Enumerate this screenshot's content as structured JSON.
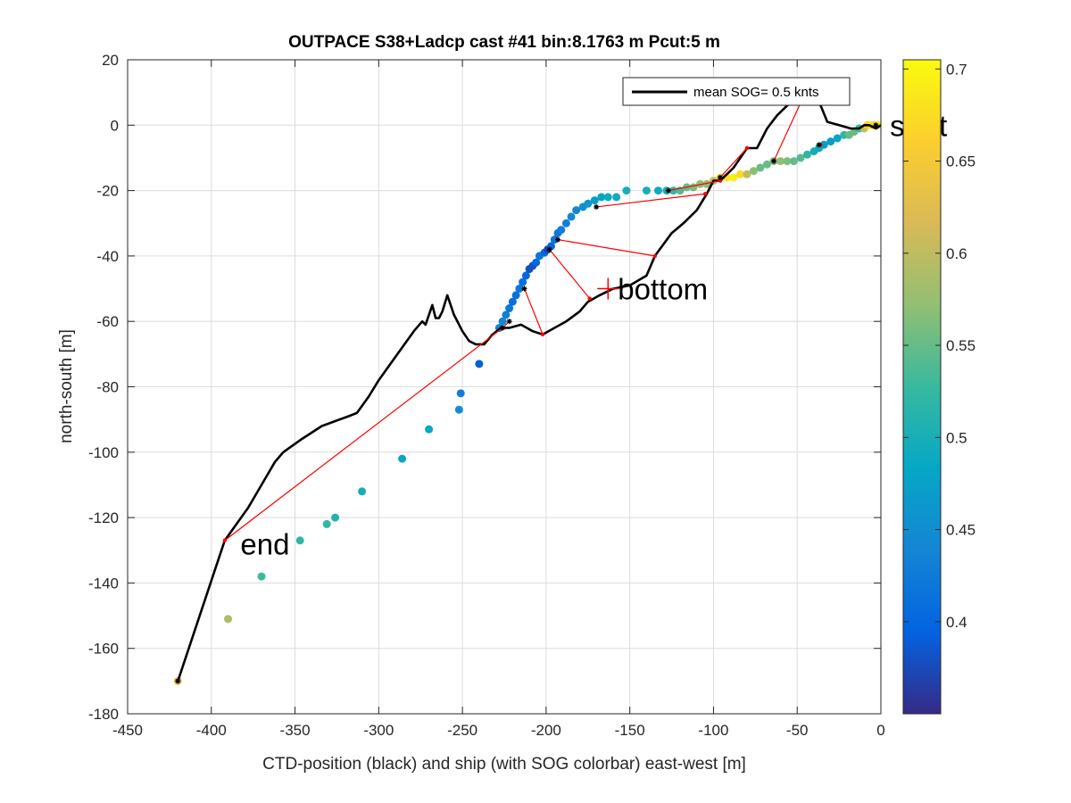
{
  "chart_data": {
    "type": "scatter",
    "title": "OUTPACE S38+Ladcp cast #41 bin:8.1763 m  Pcut:5 m",
    "xlabel": "CTD-position (black) and ship (with SOG colorbar) east-west [m]",
    "ylabel": "north-south [m]",
    "xlim": [
      -450,
      0
    ],
    "ylim": [
      -180,
      20
    ],
    "xticks": [
      -450,
      -400,
      -350,
      -300,
      -250,
      -200,
      -150,
      -100,
      -50,
      0
    ],
    "yticks": [
      20,
      0,
      -20,
      -40,
      -60,
      -80,
      -100,
      -120,
      -140,
      -160,
      -180
    ],
    "grid": true,
    "legend": {
      "label": "mean SOG=  0.5 knts",
      "placement": "top-right"
    },
    "colorbar": {
      "range": [
        0.35,
        0.705
      ],
      "ticks": [
        0.4,
        0.45,
        0.5,
        0.55,
        0.6,
        0.65,
        0.7
      ],
      "colormap": "parula"
    },
    "annotations": [
      {
        "text": "start",
        "x": -1,
        "y": 0
      },
      {
        "text": "bottom",
        "x": -163,
        "y": -50,
        "marker": "+",
        "marker_color": "#ff0000"
      },
      {
        "text": "end",
        "x": -389,
        "y": -128
      }
    ],
    "ctd_track": [
      [
        -420,
        -170
      ],
      [
        -392,
        -127
      ],
      [
        -378,
        -117
      ],
      [
        -370,
        -110
      ],
      [
        -362,
        -103
      ],
      [
        -357,
        -100
      ],
      [
        -346,
        -96
      ],
      [
        -334,
        -92
      ],
      [
        -318,
        -89
      ],
      [
        -313,
        -88
      ],
      [
        -306,
        -83
      ],
      [
        -300,
        -78
      ],
      [
        -293,
        -73
      ],
      [
        -286,
        -68
      ],
      [
        -279,
        -63
      ],
      [
        -274,
        -60
      ],
      [
        -272,
        -61
      ],
      [
        -268,
        -55
      ],
      [
        -266,
        -59
      ],
      [
        -264,
        -59
      ],
      [
        -262,
        -57
      ],
      [
        -259,
        -52
      ],
      [
        -255,
        -58
      ],
      [
        -250,
        -63
      ],
      [
        -246,
        -66
      ],
      [
        -242,
        -67
      ],
      [
        -237,
        -67
      ],
      [
        -232,
        -64
      ],
      [
        -227,
        -62
      ],
      [
        -222,
        -62
      ],
      [
        -215,
        -61
      ],
      [
        -208,
        -63
      ],
      [
        -202,
        -64
      ],
      [
        -195,
        -62
      ],
      [
        -188,
        -60
      ],
      [
        -180,
        -57
      ],
      [
        -175,
        -54
      ],
      [
        -168,
        -52
      ],
      [
        -160,
        -50
      ],
      [
        -150,
        -49
      ],
      [
        -140,
        -46
      ],
      [
        -135,
        -40
      ],
      [
        -125,
        -33
      ],
      [
        -118,
        -30
      ],
      [
        -110,
        -26
      ],
      [
        -104,
        -21
      ],
      [
        -100,
        -17
      ],
      [
        -96,
        -17
      ],
      [
        -88,
        -13
      ],
      [
        -80,
        -7
      ],
      [
        -74,
        -7
      ],
      [
        -68,
        -1
      ],
      [
        -62,
        3
      ],
      [
        -56,
        6
      ],
      [
        -50,
        8
      ],
      [
        -46,
        9
      ],
      [
        -40,
        8
      ],
      [
        -36,
        6
      ],
      [
        -32,
        1
      ],
      [
        -25,
        0
      ],
      [
        -18,
        -1
      ],
      [
        -13,
        -1
      ],
      [
        -10,
        0
      ],
      [
        -7,
        0
      ],
      [
        -3,
        -1
      ],
      [
        0,
        0
      ]
    ],
    "ctd_samples": [
      [
        -420,
        -170
      ],
      [
        -392,
        -127
      ],
      [
        -226,
        -62
      ],
      [
        -202,
        -64
      ],
      [
        -174,
        -53
      ],
      [
        -135,
        -40
      ],
      [
        -105,
        -21
      ],
      [
        -96,
        -17
      ],
      [
        -80,
        -7
      ],
      [
        -46,
        9
      ],
      [
        -36,
        -6
      ],
      [
        -3,
        0
      ]
    ],
    "ship_samples": [
      [
        -420,
        -170
      ],
      [
        -226,
        -62
      ],
      [
        -222,
        -60
      ],
      [
        -213,
        -50
      ],
      [
        -198,
        -38
      ],
      [
        -193,
        -35
      ],
      [
        -170,
        -25
      ],
      [
        -127,
        -20
      ],
      [
        -96,
        -16
      ],
      [
        -64,
        -11
      ],
      [
        -37,
        -6
      ],
      [
        -3,
        0
      ]
    ],
    "ship_track": [
      {
        "x": -420,
        "y": -170,
        "c": 0.63
      },
      {
        "x": -390,
        "y": -151,
        "c": 0.59
      },
      {
        "x": -370,
        "y": -138,
        "c": 0.53
      },
      {
        "x": -347,
        "y": -127,
        "c": 0.52
      },
      {
        "x": -331,
        "y": -122,
        "c": 0.52
      },
      {
        "x": -326,
        "y": -120,
        "c": 0.51
      },
      {
        "x": -310,
        "y": -112,
        "c": 0.5
      },
      {
        "x": -286,
        "y": -102,
        "c": 0.48
      },
      {
        "x": -270,
        "y": -93,
        "c": 0.48
      },
      {
        "x": -251,
        "y": -82,
        "c": 0.43
      },
      {
        "x": -252,
        "y": -87,
        "c": 0.45
      },
      {
        "x": -240,
        "y": -73,
        "c": 0.39
      },
      {
        "x": -228,
        "y": -62,
        "c": 0.44
      },
      {
        "x": -226,
        "y": -60,
        "c": 0.44
      },
      {
        "x": -224,
        "y": -58,
        "c": 0.43
      },
      {
        "x": -222,
        "y": -56,
        "c": 0.42
      },
      {
        "x": -220,
        "y": -54,
        "c": 0.41
      },
      {
        "x": -218,
        "y": -52,
        "c": 0.41
      },
      {
        "x": -216,
        "y": -50,
        "c": 0.42
      },
      {
        "x": -214,
        "y": -48,
        "c": 0.41
      },
      {
        "x": -212,
        "y": -46,
        "c": 0.4
      },
      {
        "x": -210,
        "y": -44,
        "c": 0.38
      },
      {
        "x": -208,
        "y": -43,
        "c": 0.38
      },
      {
        "x": -206,
        "y": -42,
        "c": 0.4
      },
      {
        "x": -204,
        "y": -40,
        "c": 0.42
      },
      {
        "x": -201,
        "y": -39,
        "c": 0.4
      },
      {
        "x": -199,
        "y": -38,
        "c": 0.37
      },
      {
        "x": -197,
        "y": -37,
        "c": 0.4
      },
      {
        "x": -195,
        "y": -35,
        "c": 0.42
      },
      {
        "x": -193,
        "y": -33,
        "c": 0.42
      },
      {
        "x": -191,
        "y": -32,
        "c": 0.43
      },
      {
        "x": -188,
        "y": -30,
        "c": 0.43
      },
      {
        "x": -185,
        "y": -28,
        "c": 0.44
      },
      {
        "x": -182,
        "y": -26,
        "c": 0.44
      },
      {
        "x": -178,
        "y": -25,
        "c": 0.45
      },
      {
        "x": -175,
        "y": -24,
        "c": 0.46
      },
      {
        "x": -171,
        "y": -23,
        "c": 0.47
      },
      {
        "x": -167,
        "y": -22,
        "c": 0.48
      },
      {
        "x": -163,
        "y": -22,
        "c": 0.49
      },
      {
        "x": -158,
        "y": -22,
        "c": 0.49
      },
      {
        "x": -152,
        "y": -20,
        "c": 0.5
      },
      {
        "x": -140,
        "y": -20,
        "c": 0.5
      },
      {
        "x": -133,
        "y": -20,
        "c": 0.49
      },
      {
        "x": -128,
        "y": -20,
        "c": 0.5
      },
      {
        "x": -124,
        "y": -20,
        "c": 0.52
      },
      {
        "x": -120,
        "y": -20,
        "c": 0.54
      },
      {
        "x": -116,
        "y": -19,
        "c": 0.55
      },
      {
        "x": -112,
        "y": -19,
        "c": 0.56
      },
      {
        "x": -108,
        "y": -18,
        "c": 0.57
      },
      {
        "x": -104,
        "y": -18,
        "c": 0.57
      },
      {
        "x": -100,
        "y": -17,
        "c": 0.6
      },
      {
        "x": -96,
        "y": -16,
        "c": 0.66
      },
      {
        "x": -92,
        "y": -16,
        "c": 0.68
      },
      {
        "x": -88,
        "y": -16,
        "c": 0.69
      },
      {
        "x": -84,
        "y": -15,
        "c": 0.67
      },
      {
        "x": -80,
        "y": -15,
        "c": 0.6
      },
      {
        "x": -76,
        "y": -14,
        "c": 0.57
      },
      {
        "x": -72,
        "y": -13,
        "c": 0.55
      },
      {
        "x": -68,
        "y": -12,
        "c": 0.55
      },
      {
        "x": -64,
        "y": -11,
        "c": 0.56
      },
      {
        "x": -60,
        "y": -11,
        "c": 0.57
      },
      {
        "x": -56,
        "y": -11,
        "c": 0.56
      },
      {
        "x": -52,
        "y": -11,
        "c": 0.55
      },
      {
        "x": -48,
        "y": -10,
        "c": 0.54
      },
      {
        "x": -44,
        "y": -9,
        "c": 0.52
      },
      {
        "x": -40,
        "y": -8,
        "c": 0.5
      },
      {
        "x": -37,
        "y": -7,
        "c": 0.49
      },
      {
        "x": -34,
        "y": -6,
        "c": 0.47
      },
      {
        "x": -30,
        "y": -5,
        "c": 0.47
      },
      {
        "x": -26,
        "y": -4,
        "c": 0.48
      },
      {
        "x": -22,
        "y": -3,
        "c": 0.52
      },
      {
        "x": -19,
        "y": -3,
        "c": 0.55
      },
      {
        "x": -16,
        "y": -2,
        "c": 0.55
      },
      {
        "x": -13,
        "y": -1,
        "c": 0.53
      },
      {
        "x": -10,
        "y": -1,
        "c": 0.6
      },
      {
        "x": -8,
        "y": 0,
        "c": 0.66
      },
      {
        "x": -6,
        "y": 0,
        "c": 0.68
      },
      {
        "x": -4,
        "y": 0,
        "c": 0.67
      },
      {
        "x": -2,
        "y": 0,
        "c": 0.68
      },
      {
        "x": 0,
        "y": 0,
        "c": 0.7
      }
    ]
  }
}
